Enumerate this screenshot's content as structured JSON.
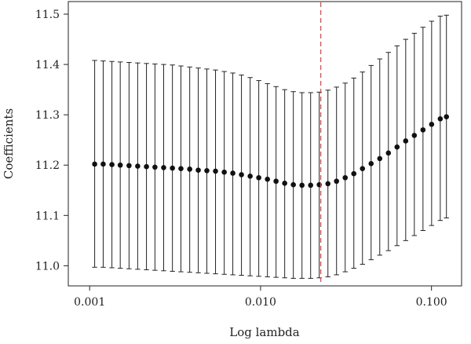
{
  "chart_data": {
    "type": "scatter",
    "title": "",
    "xlabel": "Log lambda",
    "ylabel": "Coefficients",
    "x_scale": "log",
    "xlim": [
      0.00075,
      0.15
    ],
    "ylim": [
      10.96,
      11.525
    ],
    "x_ticks": [
      {
        "value": 0.001,
        "label": "0.001"
      },
      {
        "value": 0.01,
        "label": "0.010"
      },
      {
        "value": 0.1,
        "label": "0.100"
      }
    ],
    "y_ticks": [
      {
        "value": 11.0,
        "label": "11.0"
      },
      {
        "value": 11.1,
        "label": "11.1"
      },
      {
        "value": 11.2,
        "label": "11.2"
      },
      {
        "value": 11.3,
        "label": "11.3"
      },
      {
        "value": 11.4,
        "label": "11.4"
      },
      {
        "value": 11.5,
        "label": "11.5"
      }
    ],
    "vline": {
      "x": 0.0225,
      "color": "#e8474c",
      "style": "dashed"
    },
    "grid": false,
    "legend": "none",
    "point_color": "#111111",
    "errorbar_color": "#222222",
    "series": [
      {
        "x": [
          0.00107,
          0.0012,
          0.00135,
          0.00151,
          0.0017,
          0.00191,
          0.00215,
          0.00241,
          0.00271,
          0.00305,
          0.00342,
          0.00385,
          0.00432,
          0.00485,
          0.00545,
          0.00613,
          0.00688,
          0.00773,
          0.00869,
          0.00976,
          0.01097,
          0.01232,
          0.01384,
          0.01555,
          0.01747,
          0.01963,
          0.02205,
          0.02478,
          0.02783,
          0.03127,
          0.03513,
          0.03947,
          0.04434,
          0.04982,
          0.05597,
          0.06288,
          0.07065,
          0.07937,
          0.08918,
          0.10019,
          0.11256,
          0.12231
        ],
        "y": [
          11.202,
          11.202,
          11.201,
          11.2,
          11.199,
          11.198,
          11.197,
          11.196,
          11.195,
          11.194,
          11.193,
          11.192,
          11.19,
          11.189,
          11.188,
          11.186,
          11.184,
          11.181,
          11.178,
          11.175,
          11.172,
          11.168,
          11.164,
          11.161,
          11.16,
          11.16,
          11.161,
          11.163,
          11.168,
          11.175,
          11.183,
          11.193,
          11.203,
          11.213,
          11.224,
          11.236,
          11.248,
          11.259,
          11.27,
          11.281,
          11.292,
          11.296
        ],
        "lower": [
          10.997,
          10.997,
          10.996,
          10.995,
          10.994,
          10.993,
          10.992,
          10.991,
          10.99,
          10.989,
          10.988,
          10.987,
          10.986,
          10.985,
          10.984,
          10.983,
          10.982,
          10.981,
          10.98,
          10.979,
          10.978,
          10.977,
          10.976,
          10.975,
          10.975,
          10.975,
          10.976,
          10.978,
          10.982,
          10.988,
          10.995,
          11.003,
          11.012,
          11.021,
          11.03,
          11.04,
          11.05,
          11.06,
          11.07,
          11.08,
          11.09,
          11.095
        ],
        "upper": [
          11.408,
          11.407,
          11.406,
          11.405,
          11.404,
          11.403,
          11.402,
          11.401,
          11.4,
          11.399,
          11.397,
          11.395,
          11.393,
          11.391,
          11.389,
          11.386,
          11.383,
          11.379,
          11.374,
          11.368,
          11.362,
          11.356,
          11.35,
          11.346,
          11.344,
          11.344,
          11.345,
          11.349,
          11.355,
          11.363,
          11.373,
          11.385,
          11.398,
          11.411,
          11.424,
          11.437,
          11.45,
          11.462,
          11.474,
          11.486,
          11.496,
          11.498
        ]
      }
    ]
  }
}
